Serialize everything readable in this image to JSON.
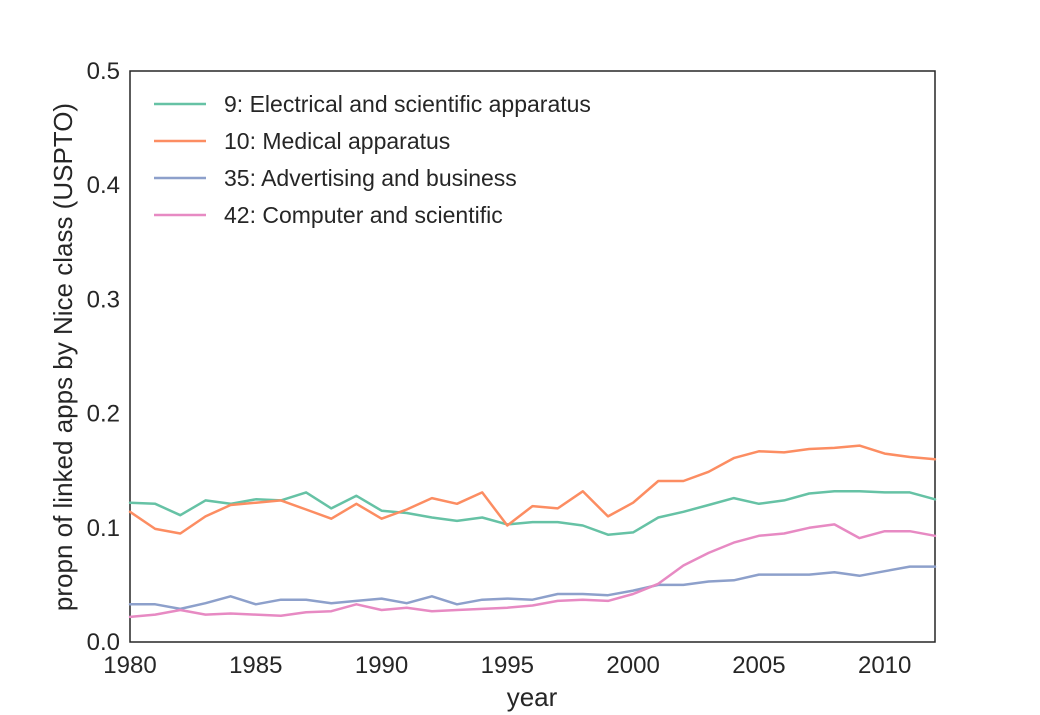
{
  "chart_data": {
    "type": "line",
    "title": "",
    "xlabel": "year",
    "ylabel": "propn of linked apps by Nice class (USPTO)",
    "xlim": [
      1980,
      2012
    ],
    "ylim": [
      0.0,
      0.5
    ],
    "grid": false,
    "legend_position": "top-left",
    "x_ticks": [
      1980,
      1985,
      1990,
      1995,
      2000,
      2005,
      2010
    ],
    "x_tick_labels": [
      "1980",
      "1985",
      "1990",
      "1995",
      "2000",
      "2005",
      "2010"
    ],
    "y_ticks": [
      0.0,
      0.1,
      0.2,
      0.3,
      0.4,
      0.5
    ],
    "y_tick_labels": [
      "0.0",
      "0.1",
      "0.2",
      "0.3",
      "0.4",
      "0.5"
    ],
    "x": [
      1980,
      1981,
      1982,
      1983,
      1984,
      1985,
      1986,
      1987,
      1988,
      1989,
      1990,
      1991,
      1992,
      1993,
      1994,
      1995,
      1996,
      1997,
      1998,
      1999,
      2000,
      2001,
      2002,
      2003,
      2004,
      2005,
      2006,
      2007,
      2008,
      2009,
      2010,
      2011,
      2012
    ],
    "series": [
      {
        "name": "9: Electrical and scientific apparatus",
        "color": "#66c2a5",
        "values": [
          0.122,
          0.121,
          0.111,
          0.124,
          0.121,
          0.125,
          0.124,
          0.131,
          0.117,
          0.128,
          0.115,
          0.113,
          0.109,
          0.106,
          0.109,
          0.103,
          0.105,
          0.105,
          0.102,
          0.094,
          0.096,
          0.109,
          0.114,
          0.12,
          0.126,
          0.121,
          0.124,
          0.13,
          0.132,
          0.132,
          0.131,
          0.131,
          0.125
        ]
      },
      {
        "name": "10: Medical apparatus",
        "color": "#fc8d62",
        "values": [
          0.114,
          0.099,
          0.095,
          0.11,
          0.12,
          0.122,
          0.124,
          0.116,
          0.108,
          0.121,
          0.108,
          0.116,
          0.126,
          0.121,
          0.131,
          0.102,
          0.119,
          0.117,
          0.132,
          0.11,
          0.122,
          0.141,
          0.141,
          0.149,
          0.161,
          0.167,
          0.166,
          0.169,
          0.17,
          0.172,
          0.165,
          0.162,
          0.16
        ]
      },
      {
        "name": "35: Advertising and business",
        "color": "#8da0cb",
        "values": [
          0.033,
          0.033,
          0.029,
          0.034,
          0.04,
          0.033,
          0.037,
          0.037,
          0.034,
          0.036,
          0.038,
          0.034,
          0.04,
          0.033,
          0.037,
          0.038,
          0.037,
          0.042,
          0.042,
          0.041,
          0.045,
          0.05,
          0.05,
          0.053,
          0.054,
          0.059,
          0.059,
          0.059,
          0.061,
          0.058,
          0.062,
          0.066,
          0.066
        ]
      },
      {
        "name": "42: Computer and scientific",
        "color": "#e78ac3",
        "values": [
          0.022,
          0.024,
          0.028,
          0.024,
          0.025,
          0.024,
          0.023,
          0.026,
          0.027,
          0.033,
          0.028,
          0.03,
          0.027,
          0.028,
          0.029,
          0.03,
          0.032,
          0.036,
          0.037,
          0.036,
          0.042,
          0.051,
          0.067,
          0.078,
          0.087,
          0.093,
          0.095,
          0.1,
          0.103,
          0.091,
          0.097,
          0.097,
          0.093
        ]
      }
    ]
  }
}
